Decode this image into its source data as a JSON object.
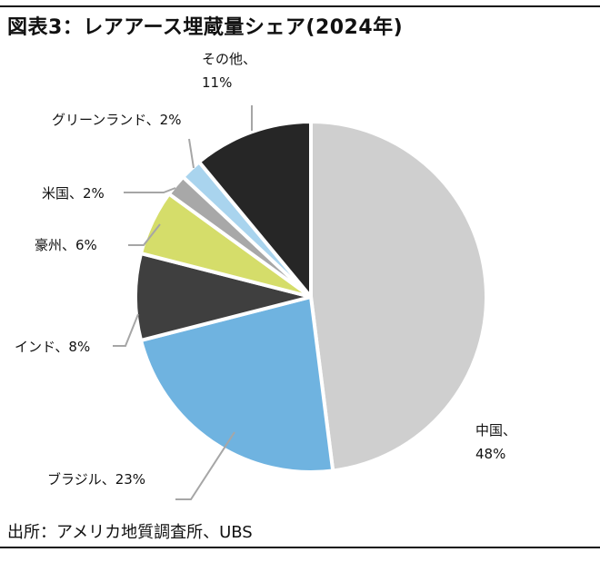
{
  "title": "図表3：レアアース埋蔵量シェア(2024年)",
  "source": "出所：アメリカ地質調査所、UBS",
  "chart_data": {
    "type": "pie",
    "title": "図表3：レアアース埋蔵量シェア(2024年)",
    "slices": [
      {
        "name": "中国",
        "value": 48,
        "color": "#cfcfcf",
        "label_lines": [
          "中国、",
          "48%"
        ]
      },
      {
        "name": "ブラジル",
        "value": 23,
        "color": "#6fb3e0",
        "label_lines": [
          "ブラジル、23%"
        ]
      },
      {
        "name": "インド",
        "value": 8,
        "color": "#3f3f3f",
        "label_lines": [
          "インド、8%"
        ]
      },
      {
        "name": "豪州",
        "value": 6,
        "color": "#d5dd6a",
        "label_lines": [
          "豪州、6%"
        ]
      },
      {
        "name": "米国",
        "value": 2,
        "color": "#a8a8a8",
        "label_lines": [
          "米国、2%"
        ]
      },
      {
        "name": "グリーンランド",
        "value": 2,
        "color": "#a9d4ee",
        "label_lines": [
          "グリーンランド、2%"
        ]
      },
      {
        "name": "その他",
        "value": 11,
        "color": "#262626",
        "label_lines": [
          "その他、",
          "11%"
        ]
      }
    ]
  }
}
